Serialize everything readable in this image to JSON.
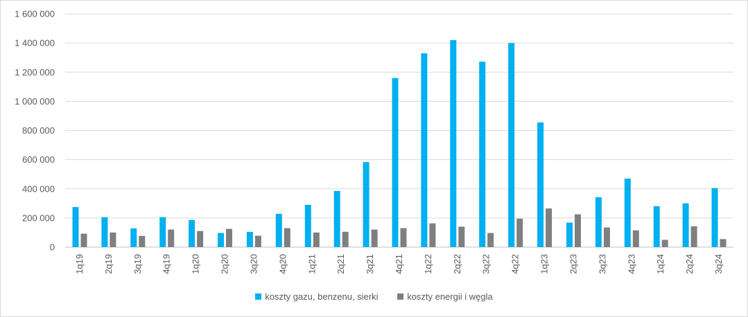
{
  "chart_data": {
    "type": "bar",
    "categories": [
      "1q19",
      "2q19",
      "3q19",
      "4q19",
      "1q20",
      "2q20",
      "3q20",
      "4q20",
      "1q21",
      "2q21",
      "3q21",
      "4q21",
      "1q22",
      "2q22",
      "3q22",
      "4q22",
      "1q23",
      "2q23",
      "3q23",
      "4q23",
      "1q24",
      "2q24",
      "3q24"
    ],
    "series": [
      {
        "name": "koszty gazu, benzenu, sierki",
        "color": "#00b0f0",
        "values": [
          275000,
          205000,
          128000,
          205000,
          185000,
          97000,
          105000,
          228000,
          290000,
          385000,
          583000,
          1160000,
          1330000,
          1420000,
          1272000,
          1400000,
          855000,
          168000,
          342000,
          470000,
          280000,
          300000,
          405000
        ]
      },
      {
        "name": "koszty energii i węgla",
        "color": "#7f7f7f",
        "values": [
          92000,
          100000,
          77000,
          120000,
          110000,
          125000,
          78000,
          130000,
          100000,
          105000,
          120000,
          130000,
          163000,
          140000,
          97000,
          195000,
          265000,
          225000,
          135000,
          115000,
          50000,
          143000,
          55000
        ]
      }
    ],
    "ylim": [
      0,
      1600000
    ],
    "yticks": [
      0,
      200000,
      400000,
      600000,
      800000,
      1000000,
      1200000,
      1400000,
      1600000
    ],
    "ytick_labels": [
      "0",
      "200 000",
      "400 000",
      "600 000",
      "800 000",
      "1 000 000",
      "1 200 000",
      "1 400 000",
      "1 600 000"
    ],
    "grid": true,
    "legend_position": "bottom"
  }
}
